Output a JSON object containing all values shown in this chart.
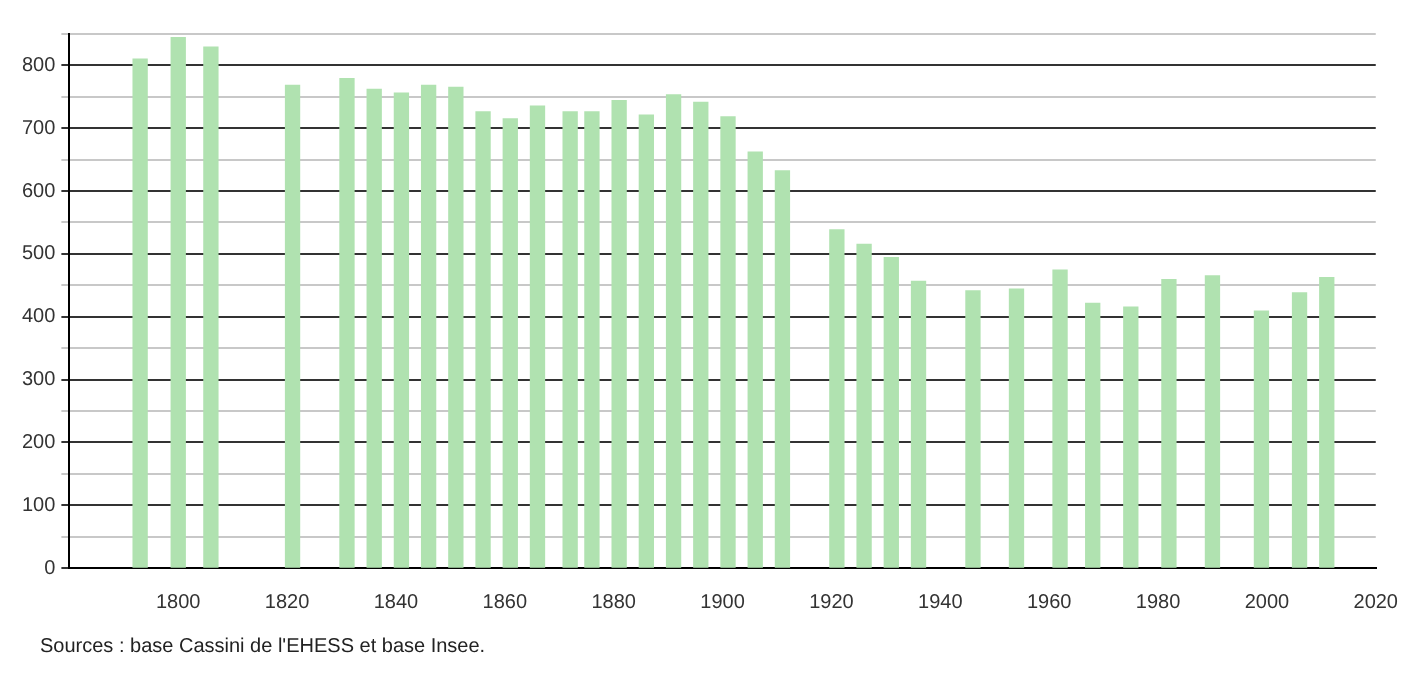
{
  "chart_data": {
    "type": "bar",
    "x": [
      1793,
      1800,
      1806,
      1821,
      1831,
      1836,
      1841,
      1846,
      1851,
      1856,
      1861,
      1866,
      1872,
      1876,
      1881,
      1886,
      1891,
      1896,
      1901,
      1906,
      1911,
      1921,
      1926,
      1931,
      1936,
      1946,
      1954,
      1962,
      1968,
      1975,
      1982,
      1990,
      1999,
      2006,
      2011
    ],
    "values": [
      810,
      844,
      829,
      768,
      779,
      762,
      756,
      768,
      765,
      726,
      715,
      735,
      726,
      726,
      744,
      721,
      753,
      741,
      718,
      662,
      632,
      538,
      515,
      494,
      456,
      441,
      444,
      474,
      421,
      415,
      459,
      465,
      409,
      438,
      462
    ],
    "color": "#b0e2b0",
    "xlim": [
      1780,
      2020
    ],
    "xticks": [
      1800,
      1820,
      1840,
      1860,
      1880,
      1900,
      1920,
      1940,
      1960,
      1980,
      2000,
      2020
    ],
    "ylim": [
      0,
      850
    ],
    "yticks": [
      0,
      {
        "value": 50,
        "label": null
      },
      100,
      {
        "value": 150,
        "label": null
      },
      200,
      {
        "value": 250,
        "label": null
      },
      300,
      {
        "value": 350,
        "label": null
      },
      400,
      {
        "value": 450,
        "label": null
      },
      500,
      {
        "value": 550,
        "label": null
      },
      600,
      {
        "value": 650,
        "label": null
      },
      700,
      {
        "value": 750,
        "label": null
      },
      800,
      {
        "value": 850,
        "label": null
      }
    ],
    "grid": "y",
    "legend": false,
    "annotations": [
      "Sources : base Cassini de l'EHESS et base Insee."
    ]
  }
}
